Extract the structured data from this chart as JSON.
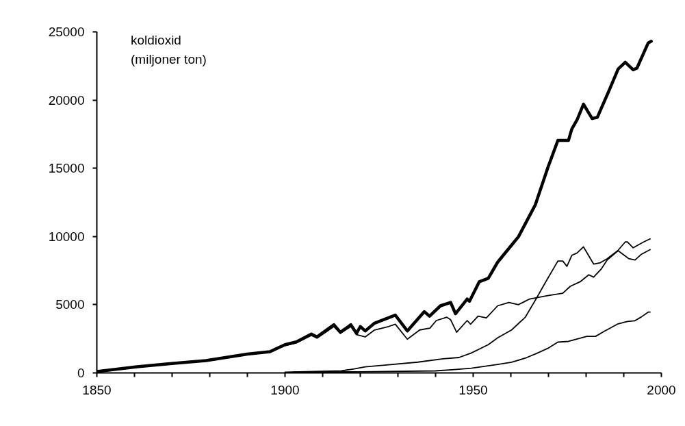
{
  "chart_data": {
    "type": "line",
    "ylabel": "koldioxid\n(miljoner ton)",
    "xlim": [
      1850,
      2000
    ],
    "ylim": [
      0,
      25000
    ],
    "xticks": [
      1850,
      {
        "value": 1860,
        "label": null
      },
      {
        "value": 1870,
        "label": null
      },
      {
        "value": 1880,
        "label": null
      },
      {
        "value": 1890,
        "label": null
      },
      1900,
      {
        "value": 1910,
        "label": null
      },
      {
        "value": 1920,
        "label": null
      },
      {
        "value": 1930,
        "label": null
      },
      {
        "value": 1940,
        "label": null
      },
      1950,
      {
        "value": 1960,
        "label": null
      },
      {
        "value": 1970,
        "label": null
      },
      {
        "value": 1980,
        "label": null
      },
      {
        "value": 1990,
        "label": null
      },
      2000
    ],
    "yticks": [
      0,
      5000,
      10000,
      15000,
      20000,
      25000
    ],
    "grid": false,
    "marker": "none",
    "line_style": "solid",
    "series": [
      {
        "color": "#000000",
        "x": [
          1850,
          1860.7,
          1870.4,
          1879,
          1890,
          1896,
          1900,
          1903,
          1907,
          1908.5,
          1913,
          1914.7,
          1917.5,
          1919,
          1920,
          1921.3,
          1923.8,
          1929.3,
          1932.5,
          1937,
          1938.4,
          1941.3,
          1944,
          1945.3,
          1948.4,
          1949,
          1951.6,
          1954,
          1956.5,
          1960.7,
          1962,
          1966.5,
          1969.8,
          1972.5,
          1975.3,
          1976.2,
          1977.6,
          1979.3,
          1981.6,
          1983,
          1986.2,
          1988.5,
          1990.4,
          1992.5,
          1993.5,
          1996.5,
          1997.3
        ],
        "values": [
          100,
          450,
          700,
          900,
          1380,
          1560,
          2070,
          2270,
          2850,
          2640,
          3530,
          2980,
          3530,
          2900,
          3400,
          3080,
          3650,
          4240,
          3080,
          4490,
          4160,
          4920,
          5170,
          4340,
          5420,
          5250,
          6680,
          6930,
          8120,
          9540,
          9970,
          12320,
          15020,
          17040,
          17040,
          17880,
          18550,
          19700,
          18640,
          18740,
          20760,
          22270,
          22770,
          22220,
          22340,
          24190,
          24310
        ]
      },
      {
        "color": "#000000",
        "x": [
          1850,
          1860.7,
          1870.4,
          1879,
          1890,
          1896,
          1900,
          1903,
          1907,
          1908.5,
          1913,
          1914.7,
          1917.5,
          1919,
          1921.3,
          1923.8,
          1927.5,
          1929.3,
          1932.5,
          1935.8,
          1938.5,
          1940.2,
          1943,
          1944,
          1945.6,
          1948.4,
          1949.3,
          1951.3,
          1953.5,
          1956.5,
          1959.5,
          1962,
          1965,
          1969.8,
          1973.8,
          1975.8,
          1978.4,
          1980.7,
          1982,
          1984,
          1985.6,
          1988.5,
          1991.3,
          1993,
          1994.7,
          1997
        ],
        "values": [
          100,
          450,
          700,
          900,
          1380,
          1560,
          2000,
          2200,
          2750,
          2550,
          3400,
          2900,
          3400,
          2800,
          2640,
          3150,
          3400,
          3570,
          2470,
          3150,
          3280,
          3840,
          4080,
          3900,
          2980,
          3840,
          3570,
          4160,
          4040,
          4920,
          5170,
          5000,
          5420,
          5670,
          5840,
          6350,
          6680,
          7190,
          7020,
          7610,
          8280,
          8960,
          8380,
          8280,
          8700,
          9040
        ]
      },
      {
        "color": "#000000",
        "x": [
          1900,
          1915,
          1918.4,
          1921.3,
          1926.5,
          1935.3,
          1942,
          1946.2,
          1949.5,
          1954,
          1956.5,
          1960.2,
          1963.8,
          1966.7,
          1969.8,
          1972.5,
          1973.8,
          1974.9,
          1976.2,
          1977.6,
          1979.3,
          1982,
          1983.8,
          1985.6,
          1988.4,
          1990.4,
          1991,
          1992.5,
          1995.3,
          1997
        ],
        "values": [
          50,
          150,
          300,
          450,
          570,
          790,
          1040,
          1130,
          1460,
          2070,
          2570,
          3150,
          4070,
          5420,
          6930,
          8200,
          8200,
          7810,
          8620,
          8790,
          9240,
          7980,
          8080,
          8370,
          8960,
          9600,
          9600,
          9170,
          9600,
          9830
        ]
      },
      {
        "color": "#000000",
        "x": [
          1902,
          1920,
          1940,
          1944.4,
          1949.5,
          1956.5,
          1960.2,
          1963.8,
          1966.7,
          1969.8,
          1972.5,
          1975.3,
          1980.2,
          1982.5,
          1984.9,
          1988.5,
          1991,
          1992.9,
          1994.7,
          1996.5,
          1997
        ],
        "values": [
          50,
          80,
          150,
          230,
          340,
          620,
          790,
          1080,
          1410,
          1800,
          2260,
          2310,
          2680,
          2680,
          3060,
          3600,
          3770,
          3820,
          4110,
          4460,
          4460
        ]
      }
    ]
  }
}
